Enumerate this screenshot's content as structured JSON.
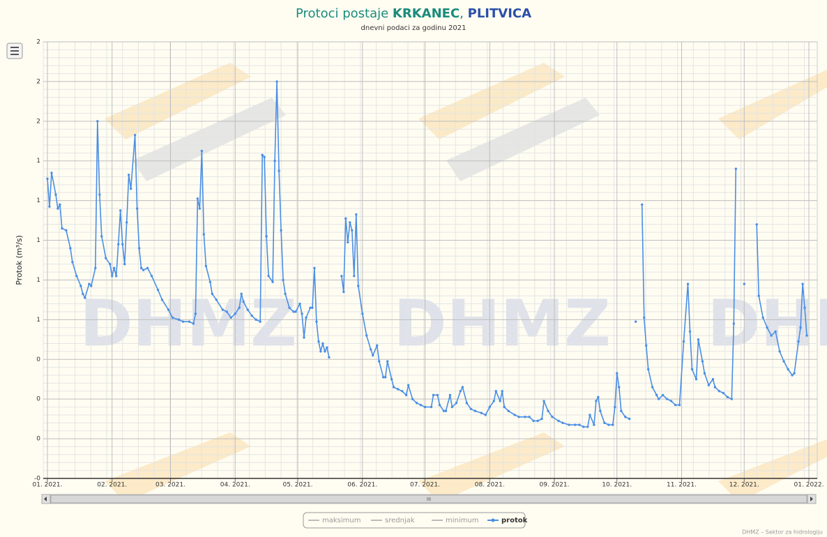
{
  "chart_data": {
    "type": "line",
    "title_parts": [
      "Protoci postaje ",
      "KRKANEC",
      ", ",
      "PLITVICA"
    ],
    "subtitle": "dnevni podaci za godinu 2021",
    "y_label": "Protok (m³/s)",
    "credit": "DHMZ – Sektor za hidrologiju",
    "watermark": "DHMZ",
    "scrollbar_grip": "III",
    "inactive_legend": [
      "maksimum",
      "srednjak",
      "minimum"
    ],
    "xlim": [
      -2,
      369
    ],
    "xticks": [
      {
        "value": 0,
        "label": "01. 2021."
      },
      {
        "value": 31,
        "label": "02. 2021."
      },
      {
        "value": 59,
        "label": "03. 2021."
      },
      {
        "value": 90,
        "label": "04. 2021."
      },
      {
        "value": 120,
        "label": "05. 2021."
      },
      {
        "value": 151,
        "label": "06. 2021."
      },
      {
        "value": 181,
        "label": "07. 2021."
      },
      {
        "value": 212,
        "label": "08. 2021."
      },
      {
        "value": 243,
        "label": "09. 2021."
      },
      {
        "value": 273,
        "label": "10. 2021."
      },
      {
        "value": 304,
        "label": "11. 2021."
      },
      {
        "value": 334,
        "label": "12. 2021."
      },
      {
        "value": 365,
        "label": "01. 2022."
      }
    ],
    "ylim": [
      -0.2,
      2.0
    ],
    "yticks": [
      {
        "value": -0.2,
        "label": "-0"
      },
      0,
      {
        "value": 0.2,
        "label": "0"
      },
      {
        "value": 0.4,
        "label": "0"
      },
      {
        "value": 0.6,
        "label": "1"
      },
      {
        "value": 0.8,
        "label": "1"
      },
      1,
      {
        "value": 1.2,
        "label": "1"
      },
      {
        "value": 1.4,
        "label": "1"
      },
      {
        "value": 1.6,
        "label": "2"
      },
      {
        "value": 1.8,
        "label": "2"
      },
      2
    ],
    "grid": true,
    "x": [
      0,
      1,
      2,
      4,
      5,
      6,
      7,
      9,
      11,
      12,
      14,
      16,
      17,
      18,
      20,
      21,
      23,
      24,
      25,
      26,
      28,
      30,
      31,
      32,
      33,
      34,
      35,
      36,
      37,
      38,
      39,
      40,
      42,
      43,
      44,
      45,
      46,
      48,
      50,
      53,
      55,
      58,
      60,
      63,
      65,
      68,
      70,
      71,
      72,
      73,
      74,
      75,
      76,
      78,
      79,
      81,
      84,
      86,
      88,
      90,
      92,
      93,
      94,
      96,
      98,
      100,
      102,
      103,
      104,
      105,
      106,
      108,
      109,
      110,
      111,
      112,
      113,
      114,
      116,
      118,
      119,
      121,
      122,
      123,
      124,
      126,
      127,
      128,
      129,
      130,
      131,
      132,
      133,
      134,
      135,
      138,
      141,
      142,
      143,
      144,
      145,
      146,
      147,
      148,
      149,
      151,
      153,
      155,
      156,
      158,
      159,
      161,
      162,
      163,
      165,
      166,
      168,
      170,
      172,
      173,
      175,
      177,
      179,
      181,
      184,
      185,
      187,
      188,
      190,
      191,
      193,
      194,
      196,
      198,
      199,
      201,
      203,
      205,
      208,
      210,
      212,
      214,
      215,
      217,
      218,
      219,
      221,
      224,
      226,
      229,
      231,
      233,
      235,
      237,
      238,
      240,
      242,
      245,
      247,
      250,
      253,
      255,
      257,
      259,
      260,
      262,
      263,
      264,
      265,
      267,
      269,
      271,
      272,
      273,
      274,
      275,
      277,
      279,
      280,
      282,
      283,
      285,
      286,
      287,
      288,
      290,
      292,
      293,
      295,
      297,
      299,
      301,
      303,
      305,
      307,
      308,
      309,
      311,
      312,
      314,
      315,
      317,
      319,
      320,
      322,
      324,
      326,
      328,
      329,
      330,
      332,
      334,
      336,
      340,
      341,
      343,
      345,
      347,
      349,
      351,
      353,
      355,
      357,
      358,
      360,
      361,
      362,
      363,
      364
    ],
    "series": [
      {
        "name": "protok",
        "color": "#4a8ee6",
        "values": [
          1.31,
          1.17,
          1.34,
          1.23,
          1.16,
          1.18,
          1.06,
          1.05,
          0.96,
          0.89,
          0.82,
          0.77,
          0.73,
          0.71,
          0.78,
          0.77,
          0.86,
          1.6,
          1.23,
          1.02,
          0.91,
          0.88,
          0.82,
          0.86,
          0.82,
          0.98,
          1.15,
          0.98,
          0.88,
          1.09,
          1.33,
          1.26,
          1.53,
          1.16,
          0.96,
          0.86,
          0.85,
          0.86,
          0.82,
          0.75,
          0.7,
          0.65,
          0.61,
          0.6,
          0.59,
          0.59,
          0.58,
          0.63,
          1.21,
          1.16,
          1.45,
          1.03,
          0.87,
          0.79,
          0.73,
          0.7,
          0.65,
          0.64,
          0.61,
          0.63,
          0.66,
          0.73,
          0.69,
          0.65,
          0.62,
          0.6,
          0.59,
          1.43,
          1.42,
          1.02,
          0.82,
          0.79,
          1.4,
          1.8,
          1.35,
          1.05,
          0.8,
          0.73,
          0.66,
          0.64,
          0.64,
          0.68,
          0.63,
          0.51,
          0.61,
          0.66,
          0.66,
          0.86,
          0.59,
          0.49,
          0.44,
          0.48,
          0.44,
          0.46,
          0.41,
          null,
          0.82,
          0.74,
          1.11,
          0.99,
          1.09,
          1.05,
          0.82,
          1.13,
          0.77,
          0.63,
          0.52,
          0.45,
          0.42,
          0.47,
          0.39,
          0.31,
          0.31,
          0.39,
          0.3,
          0.26,
          0.25,
          0.24,
          0.22,
          0.27,
          0.2,
          0.18,
          0.17,
          0.16,
          0.16,
          0.22,
          0.22,
          0.17,
          0.14,
          0.14,
          0.22,
          0.16,
          0.18,
          0.24,
          0.26,
          0.18,
          0.15,
          0.14,
          0.13,
          0.12,
          0.16,
          0.19,
          0.24,
          0.19,
          0.24,
          0.16,
          0.14,
          0.12,
          0.11,
          0.11,
          0.11,
          0.09,
          0.09,
          0.1,
          0.19,
          0.14,
          0.11,
          0.09,
          0.08,
          0.07,
          0.07,
          0.07,
          0.06,
          0.06,
          0.12,
          0.07,
          0.19,
          0.21,
          0.14,
          0.08,
          0.07,
          0.07,
          0.16,
          0.33,
          0.26,
          0.14,
          0.11,
          0.1,
          null,
          0.59,
          null,
          1.18,
          0.61,
          0.47,
          0.35,
          0.26,
          0.22,
          0.2,
          0.22,
          0.2,
          0.19,
          0.17,
          0.17,
          0.49,
          0.78,
          0.54,
          0.35,
          0.3,
          0.5,
          0.39,
          0.33,
          0.27,
          0.3,
          0.26,
          0.24,
          0.23,
          0.21,
          0.2,
          0.58,
          1.36,
          null,
          0.78,
          null,
          1.08,
          0.72,
          0.61,
          0.56,
          0.52,
          0.54,
          0.44,
          0.39,
          0.35,
          0.32,
          0.33,
          0.49,
          0.56,
          0.78,
          0.66,
          0.52
        ]
      }
    ]
  }
}
